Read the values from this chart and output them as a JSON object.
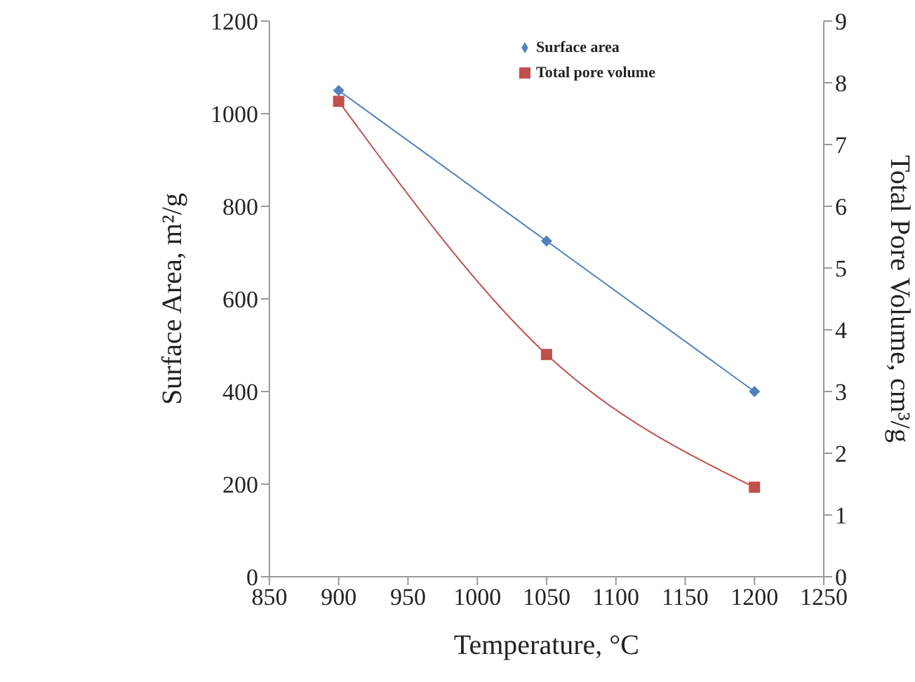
{
  "chart_data": {
    "type": "line",
    "xlabel": "Temperature, °C",
    "ylabel": "Surface Area, m²/g",
    "y2label": "Total Pore Volume, cm³/g",
    "x": [
      900,
      1050,
      1200
    ],
    "series": [
      {
        "name": "Surface area",
        "color": "#4f81bd",
        "marker": "diamond",
        "values": [
          1050,
          725,
          400
        ]
      },
      {
        "name": "Total pore volume",
        "color": "#c0504d",
        "marker": "square",
        "axis": "y2",
        "values": [
          7.7,
          3.6,
          1.45
        ]
      }
    ],
    "xlim": [
      850,
      1250
    ],
    "xticks": [
      850,
      900,
      950,
      1000,
      1050,
      1100,
      1150,
      1200,
      1250
    ],
    "ylim": [
      0,
      1200
    ],
    "yticks": [
      0,
      200,
      400,
      600,
      800,
      1000,
      1200
    ],
    "y2lim": [
      0,
      9
    ],
    "y2ticks": [
      0,
      1,
      2,
      3,
      4,
      5,
      6,
      7,
      8,
      9
    ],
    "legend": "top right",
    "grid": false
  }
}
